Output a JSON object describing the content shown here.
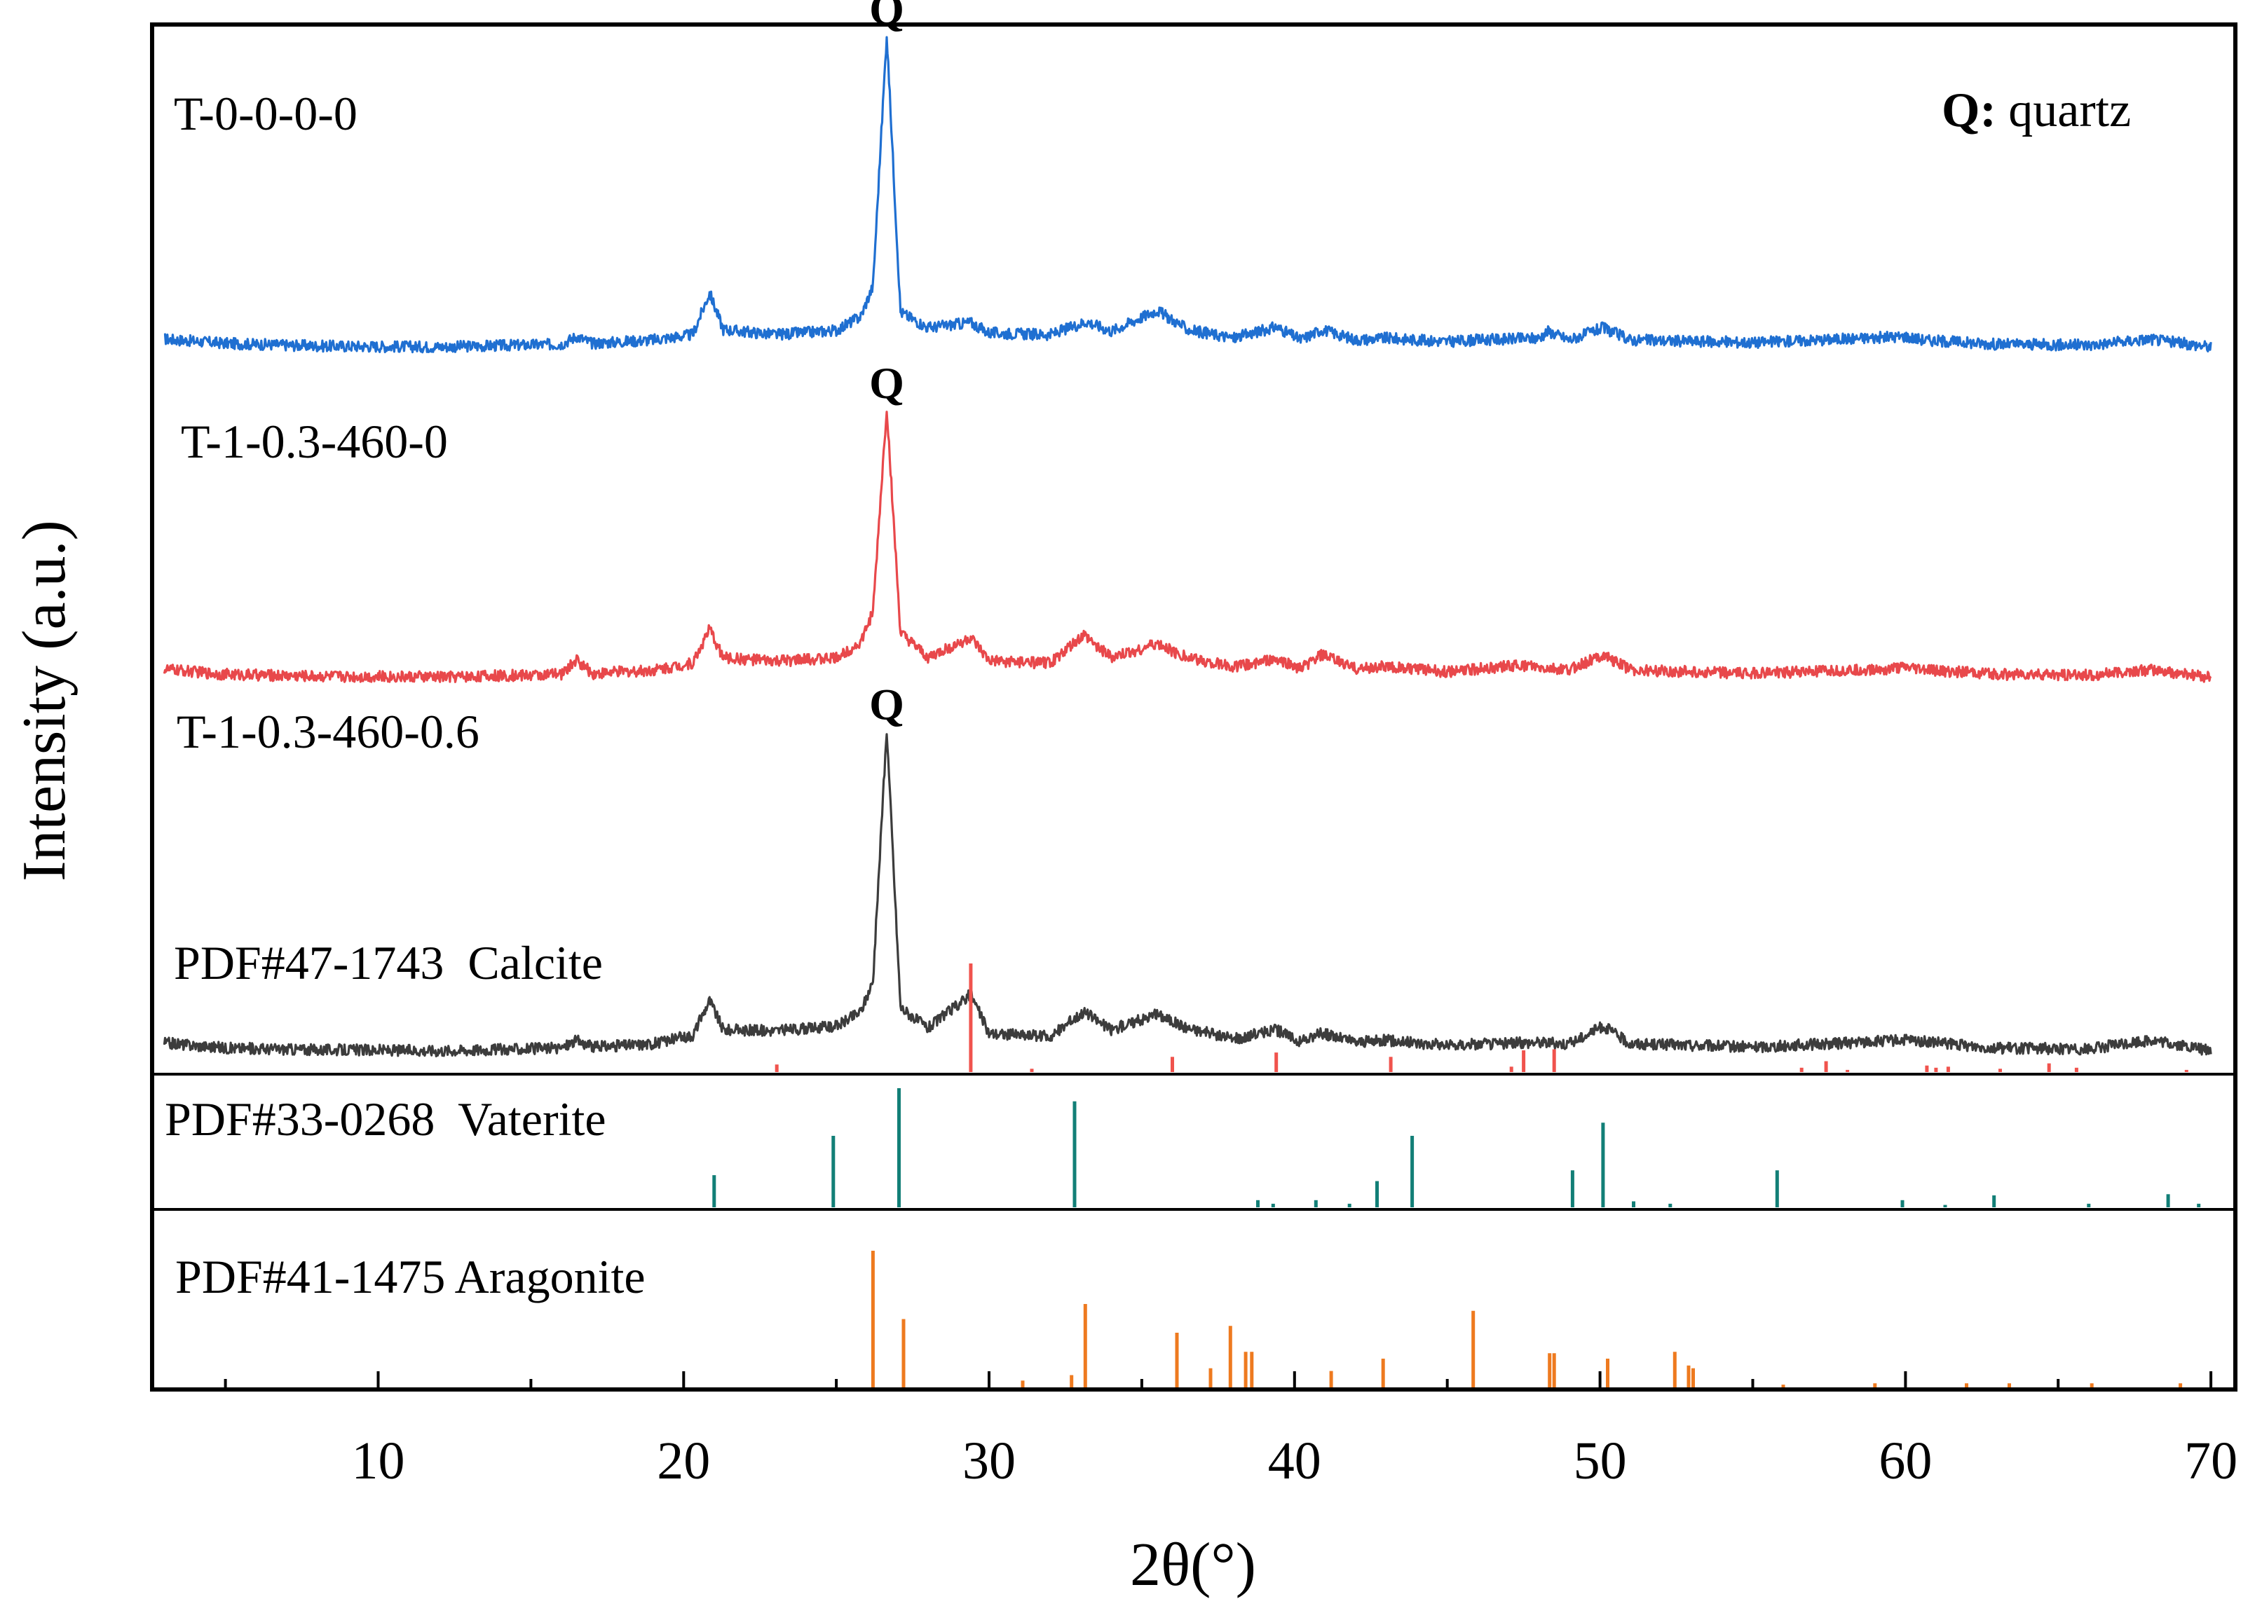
{
  "chart_data": {
    "type": "line",
    "title": "",
    "xlabel": "2θ(°)",
    "ylabel": "Intensity (a.u.)",
    "xlim": [
      2.6,
      70.8
    ],
    "xticks": [
      10,
      20,
      30,
      40,
      50,
      60,
      70
    ],
    "xtick_labels": [
      "10",
      "20",
      "30",
      "40",
      "50",
      "60",
      "70"
    ],
    "legend_note": {
      "symbol": "Q:",
      "text": " quartz"
    },
    "series": [
      {
        "name": "T-0-0-0-0",
        "color": "#1f6fd1",
        "baseline_y": 0.0,
        "points": [
          [
            3,
            0.9
          ],
          [
            5,
            0.4
          ],
          [
            8,
            0.1
          ],
          [
            12,
            0.0
          ],
          [
            16,
            0.3
          ],
          [
            16.5,
            1.2
          ],
          [
            17,
            0.4
          ],
          [
            19,
            0.8
          ],
          [
            20.3,
            1.4
          ],
          [
            20.85,
            6.2
          ],
          [
            21.3,
            2.0
          ],
          [
            23,
            1.4
          ],
          [
            25,
            1.9
          ],
          [
            25.8,
            3.5
          ],
          [
            26.2,
            7.0
          ],
          [
            26.65,
            36.0
          ],
          [
            27.1,
            4.0
          ],
          [
            28,
            2.2
          ],
          [
            29.4,
            2.8
          ],
          [
            30,
            1.6
          ],
          [
            32,
            1.4
          ],
          [
            33.2,
            2.9
          ],
          [
            34,
            1.8
          ],
          [
            35.5,
            4.2
          ],
          [
            36.5,
            2.0
          ],
          [
            38,
            1.0
          ],
          [
            39.4,
            2.3
          ],
          [
            40.2,
            0.8
          ],
          [
            40.9,
            2.0
          ],
          [
            42,
            0.8
          ],
          [
            43,
            1.0
          ],
          [
            45,
            0.6
          ],
          [
            46,
            0.8
          ],
          [
            48,
            1.0
          ],
          [
            48.3,
            1.8
          ],
          [
            49,
            0.8
          ],
          [
            50.1,
            2.2
          ],
          [
            51,
            0.8
          ],
          [
            55,
            0.5
          ],
          [
            60,
            1.2
          ],
          [
            60.6,
            0.8
          ],
          [
            63,
            0.3
          ],
          [
            66,
            0.2
          ],
          [
            68,
            0.9
          ],
          [
            70,
            0.0
          ]
        ],
        "peak_labels": [
          {
            "x": 26.65,
            "text": "Q"
          }
        ]
      },
      {
        "name": "T-1-0.3-460-0",
        "color": "#e8484b",
        "baseline_y": -38.0,
        "points": [
          [
            3,
            0.9
          ],
          [
            5,
            0.3
          ],
          [
            8,
            0.1
          ],
          [
            12,
            0.0
          ],
          [
            16,
            0.3
          ],
          [
            16.5,
            2.0
          ],
          [
            17,
            0.4
          ],
          [
            19,
            0.8
          ],
          [
            20.3,
            1.6
          ],
          [
            20.85,
            5.5
          ],
          [
            21.3,
            2.2
          ],
          [
            23,
            1.8
          ],
          [
            25,
            2.2
          ],
          [
            25.8,
            4.0
          ],
          [
            26.2,
            7.5
          ],
          [
            26.65,
            31.0
          ],
          [
            27.1,
            5.0
          ],
          [
            28,
            2.2
          ],
          [
            29.4,
            4.5
          ],
          [
            30,
            1.8
          ],
          [
            32,
            1.6
          ],
          [
            33.1,
            4.8
          ],
          [
            34,
            2.2
          ],
          [
            35.5,
            3.8
          ],
          [
            36.5,
            2.2
          ],
          [
            38,
            1.2
          ],
          [
            39.4,
            2.0
          ],
          [
            40.2,
            1.0
          ],
          [
            40.9,
            2.6
          ],
          [
            42,
            1.0
          ],
          [
            43,
            1.2
          ],
          [
            45,
            0.6
          ],
          [
            47.4,
            1.4
          ],
          [
            48,
            1.0
          ],
          [
            49,
            0.8
          ],
          [
            50.1,
            2.6
          ],
          [
            51,
            0.8
          ],
          [
            55,
            0.4
          ],
          [
            60,
            1.0
          ],
          [
            63,
            0.3
          ],
          [
            66,
            0.2
          ],
          [
            68,
            0.8
          ],
          [
            70,
            0.0
          ]
        ],
        "peak_labels": [
          {
            "x": 26.65,
            "text": "Q"
          }
        ]
      },
      {
        "name": "T-1-0.3-460-0.6",
        "color": "#3c3c3c",
        "baseline_y": -81.0,
        "points": [
          [
            3,
            0.9
          ],
          [
            5,
            0.3
          ],
          [
            8,
            0.1
          ],
          [
            12,
            0.0
          ],
          [
            16,
            0.3
          ],
          [
            16.5,
            1.2
          ],
          [
            17,
            0.4
          ],
          [
            19,
            0.8
          ],
          [
            20.3,
            1.8
          ],
          [
            20.85,
            5.8
          ],
          [
            21.3,
            2.4
          ],
          [
            23,
            2.3
          ],
          [
            25,
            2.8
          ],
          [
            25.8,
            4.5
          ],
          [
            26.2,
            8.0
          ],
          [
            26.65,
            37.0
          ],
          [
            27.1,
            5.0
          ],
          [
            28,
            2.6
          ],
          [
            29.4,
            6.5
          ],
          [
            30,
            2.0
          ],
          [
            32,
            1.6
          ],
          [
            33.1,
            4.5
          ],
          [
            34,
            2.4
          ],
          [
            35.5,
            4.2
          ],
          [
            36.5,
            2.6
          ],
          [
            38,
            1.3
          ],
          [
            39.4,
            2.4
          ],
          [
            40.2,
            1.0
          ],
          [
            40.9,
            2.0
          ],
          [
            42,
            1.0
          ],
          [
            43,
            1.2
          ],
          [
            45,
            0.6
          ],
          [
            48,
            1.0
          ],
          [
            49,
            0.8
          ],
          [
            50.1,
            2.8
          ],
          [
            51,
            0.8
          ],
          [
            55,
            0.4
          ],
          [
            60,
            1.2
          ],
          [
            63,
            0.3
          ],
          [
            66,
            0.2
          ],
          [
            68,
            1.2
          ],
          [
            70,
            0.0
          ]
        ],
        "peak_labels": [
          {
            "x": 26.65,
            "text": "Q"
          }
        ]
      }
    ],
    "reference_patterns": [
      {
        "name": "PDF#47-1743  Calcite",
        "color": "#f0534d",
        "lines": [
          [
            23.05,
            7
          ],
          [
            29.4,
            100
          ],
          [
            31.4,
            3
          ],
          [
            36.0,
            14
          ],
          [
            39.4,
            18
          ],
          [
            43.15,
            14
          ],
          [
            47.1,
            5
          ],
          [
            47.5,
            20
          ],
          [
            48.5,
            21
          ],
          [
            56.6,
            4
          ],
          [
            57.4,
            10
          ],
          [
            58.1,
            2
          ],
          [
            60.7,
            6
          ],
          [
            61.0,
            4
          ],
          [
            61.4,
            5
          ],
          [
            63.1,
            3
          ],
          [
            64.7,
            8
          ],
          [
            65.6,
            4
          ],
          [
            69.2,
            2
          ]
        ]
      },
      {
        "name": "PDF#33-0268  Vaterite",
        "color": "#127f77",
        "lines": [
          [
            21.0,
            27
          ],
          [
            24.9,
            60
          ],
          [
            27.05,
            100
          ],
          [
            32.8,
            89
          ],
          [
            38.8,
            6
          ],
          [
            39.3,
            3
          ],
          [
            40.7,
            6
          ],
          [
            41.8,
            3
          ],
          [
            42.7,
            22
          ],
          [
            43.85,
            60
          ],
          [
            49.1,
            31
          ],
          [
            50.1,
            71
          ],
          [
            51.1,
            5
          ],
          [
            52.3,
            3
          ],
          [
            55.8,
            31
          ],
          [
            59.9,
            6
          ],
          [
            61.3,
            2
          ],
          [
            62.9,
            10
          ],
          [
            66.0,
            3
          ],
          [
            68.6,
            11
          ],
          [
            69.6,
            3
          ]
        ]
      },
      {
        "name": "PDF#41-1475 Aragonite",
        "color": "#ee7a1f",
        "lines": [
          [
            26.2,
            100
          ],
          [
            27.2,
            50
          ],
          [
            31.1,
            5
          ],
          [
            32.7,
            9
          ],
          [
            33.15,
            61
          ],
          [
            36.15,
            40
          ],
          [
            37.25,
            14
          ],
          [
            37.9,
            45
          ],
          [
            38.4,
            26
          ],
          [
            38.6,
            26
          ],
          [
            41.2,
            12
          ],
          [
            42.9,
            21
          ],
          [
            45.85,
            56
          ],
          [
            48.35,
            25
          ],
          [
            48.5,
            25
          ],
          [
            50.25,
            21
          ],
          [
            52.45,
            26
          ],
          [
            52.9,
            16
          ],
          [
            53.05,
            14
          ],
          [
            56.0,
            2
          ],
          [
            59.0,
            3
          ],
          [
            62.0,
            3
          ],
          [
            63.4,
            3
          ],
          [
            66.1,
            3
          ],
          [
            69.0,
            3
          ]
        ]
      }
    ]
  }
}
